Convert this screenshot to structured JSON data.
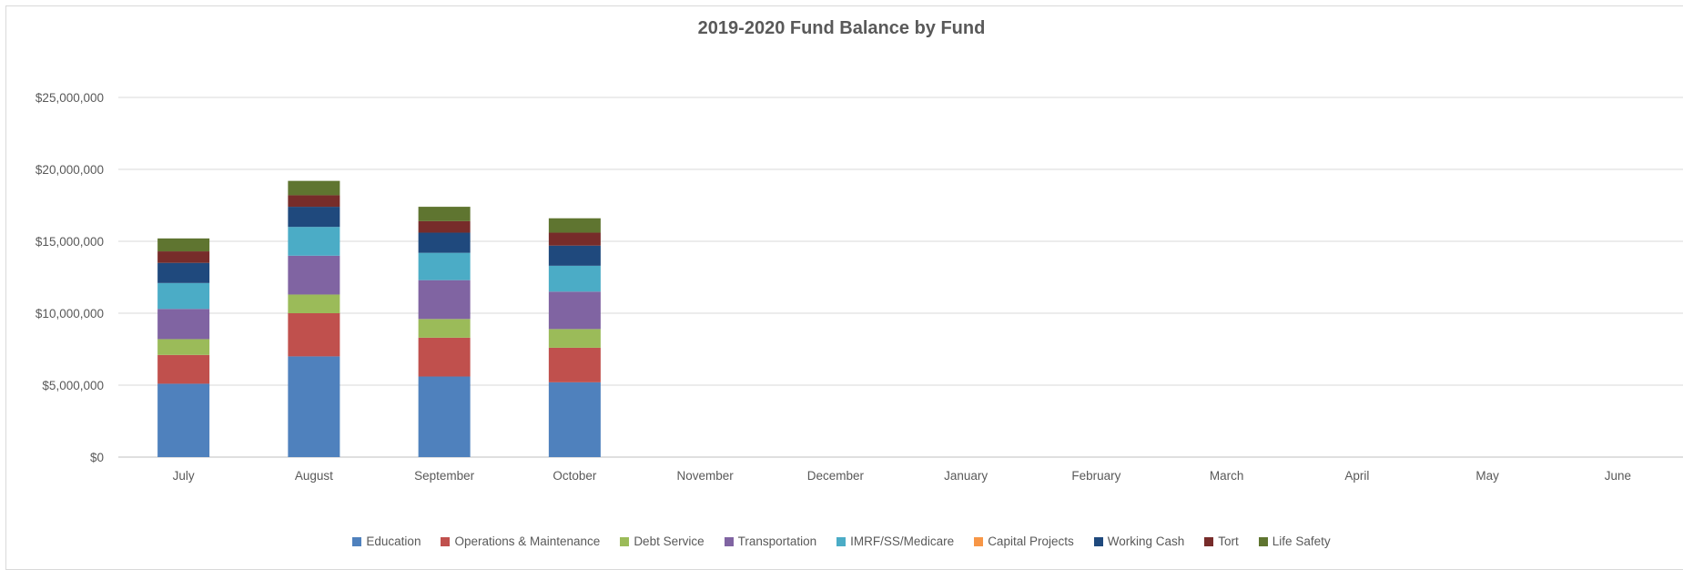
{
  "chart_data": {
    "type": "bar",
    "stacked": true,
    "title": "2019-2020 Fund Balance by Fund",
    "xlabel": "",
    "ylabel": "",
    "ylim": [
      0,
      25000000
    ],
    "yticks": [
      0,
      5000000,
      10000000,
      15000000,
      20000000,
      25000000
    ],
    "ytick_labels": [
      "$0",
      "$5,000,000",
      "$10,000,000",
      "$15,000,000",
      "$20,000,000",
      "$25,000,000"
    ],
    "grid": true,
    "legend_position": "bottom",
    "categories": [
      "July",
      "August",
      "September",
      "October",
      "November",
      "December",
      "January",
      "February",
      "March",
      "April",
      "May",
      "June"
    ],
    "series": [
      {
        "name": "Education",
        "color": "#4F81BD",
        "values": [
          5100000,
          7000000,
          5600000,
          5200000,
          null,
          null,
          null,
          null,
          null,
          null,
          null,
          null
        ]
      },
      {
        "name": "Operations & Maintenance",
        "color": "#C0504D",
        "values": [
          2000000,
          3000000,
          2700000,
          2400000,
          null,
          null,
          null,
          null,
          null,
          null,
          null,
          null
        ]
      },
      {
        "name": "Debt Service",
        "color": "#9BBB59",
        "values": [
          1100000,
          1300000,
          1300000,
          1300000,
          null,
          null,
          null,
          null,
          null,
          null,
          null,
          null
        ]
      },
      {
        "name": "Transportation",
        "color": "#8064A2",
        "values": [
          2100000,
          2700000,
          2700000,
          2600000,
          null,
          null,
          null,
          null,
          null,
          null,
          null,
          null
        ]
      },
      {
        "name": "IMRF/SS/Medicare",
        "color": "#4BACC6",
        "values": [
          1800000,
          2000000,
          1900000,
          1800000,
          null,
          null,
          null,
          null,
          null,
          null,
          null,
          null
        ]
      },
      {
        "name": "Capital Projects",
        "color": "#F79646",
        "values": [
          0,
          0,
          0,
          0,
          null,
          null,
          null,
          null,
          null,
          null,
          null,
          null
        ]
      },
      {
        "name": "Working Cash",
        "color": "#1F497D",
        "values": [
          1400000,
          1400000,
          1400000,
          1400000,
          null,
          null,
          null,
          null,
          null,
          null,
          null,
          null
        ]
      },
      {
        "name": "Tort",
        "color": "#772C2A",
        "values": [
          800000,
          800000,
          800000,
          900000,
          null,
          null,
          null,
          null,
          null,
          null,
          null,
          null
        ]
      },
      {
        "name": "Life Safety",
        "color": "#5F7530",
        "values": [
          900000,
          1000000,
          1000000,
          1000000,
          null,
          null,
          null,
          null,
          null,
          null,
          null,
          null
        ]
      }
    ]
  }
}
